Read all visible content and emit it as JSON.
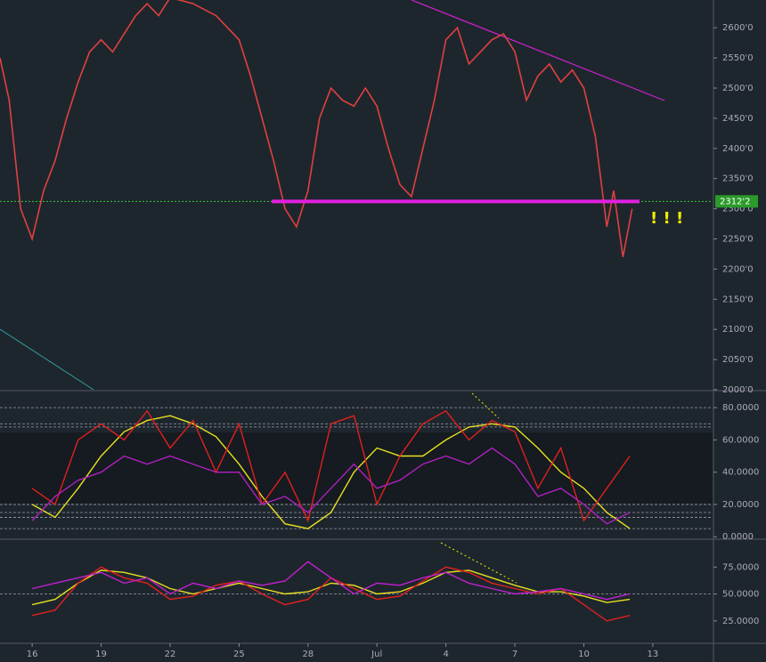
{
  "chart_data": [
    {
      "type": "line",
      "color": "#e04040",
      "x": [
        14.6,
        15,
        15.5,
        16,
        16.5,
        17,
        17.5,
        18,
        18.5,
        19,
        19.5,
        20,
        20.5,
        21,
        21.5,
        22,
        23,
        24,
        25,
        25.5,
        26,
        26.5,
        27,
        27.5,
        28,
        28.5,
        29,
        29.5,
        30,
        30.5,
        31,
        31.5,
        32,
        32.5,
        33,
        33.5,
        34,
        34.5,
        35,
        35.5,
        36,
        36.5,
        37,
        37.5,
        38,
        38.5,
        39,
        39.5,
        40,
        40.5,
        41,
        41.3,
        41.7,
        42.1
      ],
      "values": [
        2550,
        2480,
        2300,
        2250,
        2330,
        2380,
        2450,
        2510,
        2560,
        2580,
        2560,
        2590,
        2620,
        2640,
        2620,
        2650,
        2640,
        2620,
        2580,
        2520,
        2450,
        2380,
        2300,
        2270,
        2330,
        2450,
        2500,
        2480,
        2470,
        2500,
        2470,
        2400,
        2340,
        2320,
        2400,
        2480,
        2580,
        2600,
        2540,
        2560,
        2580,
        2590,
        2560,
        2480,
        2520,
        2540,
        2510,
        2530,
        2500,
        2420,
        2270,
        2330,
        2220,
        2300
      ],
      "xlim": [
        14.6,
        45.6
      ],
      "ylim": [
        2000,
        2646
      ],
      "yticks": [
        {
          "value": 2000,
          "label": "2000'0"
        },
        {
          "value": 2050,
          "label": "2050'0"
        },
        {
          "value": 2100,
          "label": "2100'0"
        },
        {
          "value": 2150,
          "label": "2150'0"
        },
        {
          "value": 2200,
          "label": "2200'0"
        },
        {
          "value": 2250,
          "label": "2250'0"
        },
        {
          "value": 2300,
          "label": "2300'0"
        },
        {
          "value": 2350,
          "label": "2350'0"
        },
        {
          "value": 2400,
          "label": "2400'0"
        },
        {
          "value": 2450,
          "label": "2450'0"
        },
        {
          "value": 2500,
          "label": "2500'0"
        },
        {
          "value": 2550,
          "label": "2550'0"
        },
        {
          "value": 2600,
          "label": "2600'0"
        }
      ],
      "level": {
        "value": 2312.2,
        "label": "2312'2"
      },
      "annotation": "! ! !"
    },
    {
      "type": "line",
      "x": [
        16,
        17,
        18,
        19,
        20,
        21,
        22,
        23,
        24,
        25,
        26,
        27,
        28,
        29,
        30,
        31,
        32,
        33,
        34,
        35,
        36,
        37,
        38,
        39,
        40,
        41,
        42
      ],
      "xlim": [
        14.6,
        45.6
      ],
      "ylim": [
        -1,
        90
      ],
      "yticks": [
        {
          "value": 0,
          "label": "0.0000"
        },
        {
          "value": 20,
          "label": "20.0000"
        },
        {
          "value": 40,
          "label": "40.0000"
        },
        {
          "value": 60,
          "label": "60.0000"
        },
        {
          "value": 80,
          "label": "80.0000"
        }
      ],
      "levels": [
        80,
        70,
        68,
        20,
        15,
        12,
        5
      ],
      "series": [
        {
          "color": "#e8e020",
          "values": [
            20,
            12,
            30,
            50,
            65,
            72,
            75,
            70,
            62,
            45,
            25,
            8,
            5,
            15,
            40,
            55,
            50,
            50,
            60,
            68,
            70,
            68,
            55,
            40,
            30,
            15,
            5
          ]
        },
        {
          "color": "#e02020",
          "values": [
            30,
            20,
            60,
            70,
            60,
            78,
            55,
            72,
            40,
            70,
            20,
            40,
            10,
            70,
            75,
            20,
            50,
            70,
            78,
            60,
            72,
            65,
            30,
            55,
            10,
            30,
            50
          ]
        },
        {
          "color": "#b020c0",
          "values": [
            10,
            25,
            35,
            40,
            50,
            45,
            50,
            45,
            40,
            40,
            20,
            25,
            15,
            30,
            45,
            30,
            35,
            45,
            50,
            45,
            55,
            45,
            25,
            30,
            20,
            8,
            15
          ]
        }
      ]
    },
    {
      "type": "line",
      "x": [
        16,
        17,
        18,
        19,
        20,
        21,
        22,
        23,
        24,
        25,
        26,
        27,
        28,
        29,
        30,
        31,
        32,
        33,
        34,
        35,
        36,
        37,
        38,
        39,
        40,
        41,
        42
      ],
      "xlim": [
        14.6,
        45.6
      ],
      "ylim": [
        5,
        100
      ],
      "yticks": [
        {
          "value": 25,
          "label": "25.0000"
        },
        {
          "value": 50,
          "label": "50.0000"
        },
        {
          "value": 75,
          "label": "75.0000"
        }
      ],
      "levels": [
        50
      ],
      "xticks": [
        16,
        19,
        22,
        25,
        28,
        {
          "value": 31,
          "label": "Jul"
        },
        {
          "value": 34,
          "label": "4"
        },
        {
          "value": 37,
          "label": "7"
        },
        {
          "value": 40,
          "label": "10"
        },
        {
          "value": 43,
          "label": "13"
        }
      ],
      "series": [
        {
          "color": "#e8e020",
          "values": [
            40,
            45,
            60,
            72,
            70,
            65,
            55,
            50,
            55,
            60,
            55,
            50,
            52,
            60,
            58,
            50,
            52,
            60,
            70,
            72,
            65,
            58,
            52,
            52,
            48,
            42,
            45
          ]
        },
        {
          "color": "#e02020",
          "values": [
            30,
            35,
            60,
            75,
            65,
            60,
            45,
            48,
            58,
            62,
            50,
            40,
            45,
            65,
            55,
            45,
            48,
            62,
            75,
            70,
            60,
            55,
            50,
            55,
            40,
            25,
            30
          ]
        },
        {
          "color": "#c020d0",
          "values": [
            55,
            60,
            65,
            70,
            60,
            65,
            50,
            60,
            55,
            62,
            58,
            62,
            80,
            65,
            50,
            60,
            58,
            65,
            70,
            60,
            55,
            50,
            52,
            55,
            50,
            45,
            50
          ]
        }
      ]
    }
  ]
}
